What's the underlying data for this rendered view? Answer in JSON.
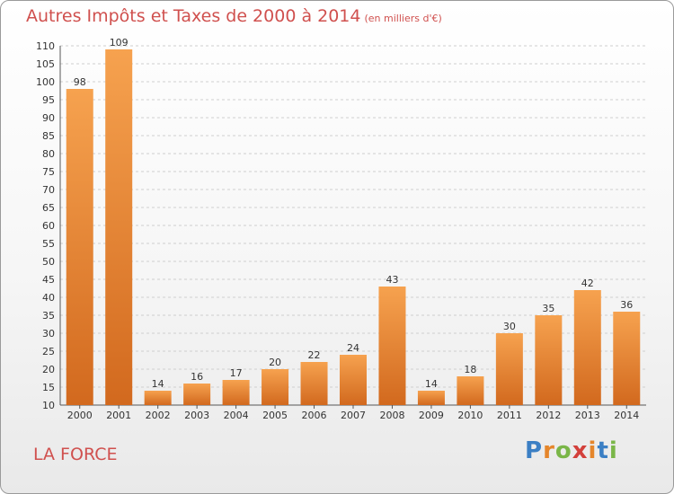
{
  "title": "Autres Impôts et Taxes de 2000 à 2014",
  "unit": "(en milliers d'€)",
  "commune": "LA FORCE",
  "brand": [
    "P",
    "r",
    "o",
    "x",
    "i",
    "t",
    "i"
  ],
  "colors": {
    "bar_light": "#f6a24f",
    "bar_dark": "#d2691e",
    "grid": "#cfcfcf",
    "title": "#d0504e"
  },
  "chart_data": {
    "type": "bar",
    "title": "Autres Impôts et Taxes de 2000 à 2014",
    "subtitle": "(en milliers d'€)",
    "categories": [
      "2000",
      "2001",
      "2002",
      "2003",
      "2004",
      "2005",
      "2006",
      "2007",
      "2008",
      "2009",
      "2010",
      "2011",
      "2012",
      "2013",
      "2014"
    ],
    "values": [
      98,
      109,
      14,
      16,
      17,
      20,
      22,
      24,
      43,
      14,
      18,
      30,
      35,
      42,
      36
    ],
    "ylim": [
      10,
      110
    ],
    "yticks": [
      10,
      15,
      20,
      25,
      30,
      35,
      40,
      45,
      50,
      55,
      60,
      65,
      70,
      75,
      80,
      85,
      90,
      95,
      100,
      105,
      110
    ],
    "grid": true,
    "xlabel": "",
    "ylabel": ""
  }
}
